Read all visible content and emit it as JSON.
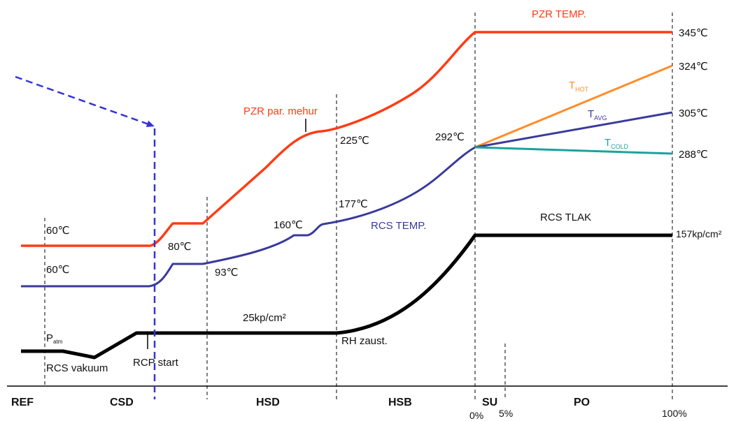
{
  "colors": {
    "pzr": "#ff3b14",
    "rcs_temp": "#3a3a9c",
    "t_hot": "#ff8c2a",
    "t_cold": "#1aa39a",
    "pressure": "#000000",
    "arrow": "#3434d6",
    "divider": "#000000"
  },
  "labels": {
    "pzr_temp": "PZR TEMP.",
    "pzr_bubble": "PZR par. mehur",
    "rcs_temp": "RCS TEMP.",
    "rcs_pressure": "RCS TLAK",
    "t_hot_main": "T",
    "t_hot_sub": "HOT",
    "t_avg_main": "T",
    "t_avg_sub": "AVG",
    "t_cold_main": "T",
    "t_cold_sub": "COLD",
    "rcs_vacuum": "RCS vakuum",
    "rcp_start": "RCP start",
    "rh_stop": "RH zaust.",
    "p_atm_main": "P",
    "p_atm_sub": "atm"
  },
  "values": {
    "pzr_cold": "60℃",
    "rcs_cold": "60℃",
    "pzr_step": "80℃",
    "rcs_step": "93℃",
    "rcs_160": "160℃",
    "rcs_177": "177℃",
    "pzr_225": "225℃",
    "rcs_292": "292℃",
    "pzr_345": "345℃",
    "t_hot_324": "324℃",
    "t_avg_305": "305℃",
    "t_cold_288": "288℃",
    "pressure_25": "25kp/cm²",
    "pressure_157": "157kp/cm²"
  },
  "phases": [
    "REF",
    "CSD",
    "HSD",
    "HSB",
    "SU",
    "PO"
  ],
  "power": [
    "0%",
    "5%",
    "100%"
  ]
}
